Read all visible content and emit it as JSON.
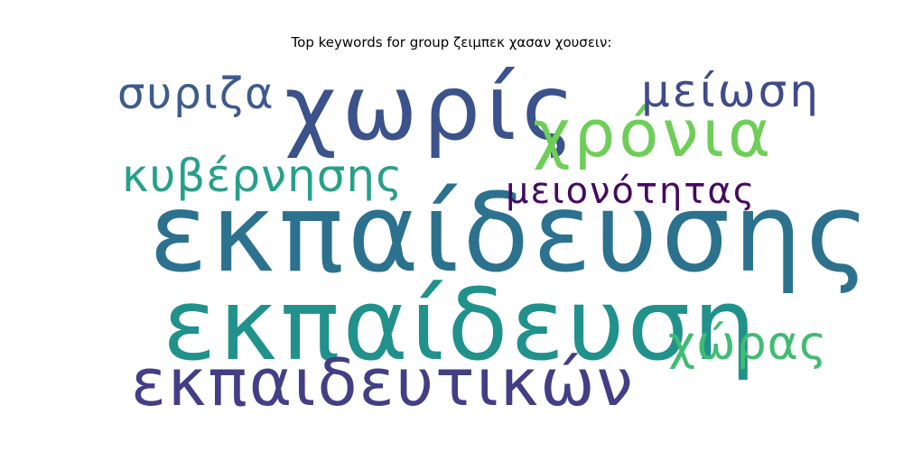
{
  "title": "Top keywords for group ζειμπεκ χασαν χουσειν:",
  "words": [
    {
      "text": "εκπαίδευσης",
      "color": "#2c728e"
    },
    {
      "text": "εκπαίδευση",
      "color": "#21918c"
    },
    {
      "text": "χωρίς",
      "color": "#3b528b"
    },
    {
      "text": "χρόνια",
      "color": "#6ece58"
    },
    {
      "text": "εκπαιδευτικών",
      "color": "#433e85"
    },
    {
      "text": "κυβέρνησης",
      "color": "#27a08a"
    },
    {
      "text": "συριζα",
      "color": "#3e5b8c"
    },
    {
      "text": "μείωση",
      "color": "#3f4b8a"
    },
    {
      "text": "μειονότητας",
      "color": "#440a60"
    },
    {
      "text": "χώρας",
      "color": "#3fbc73"
    }
  ]
}
